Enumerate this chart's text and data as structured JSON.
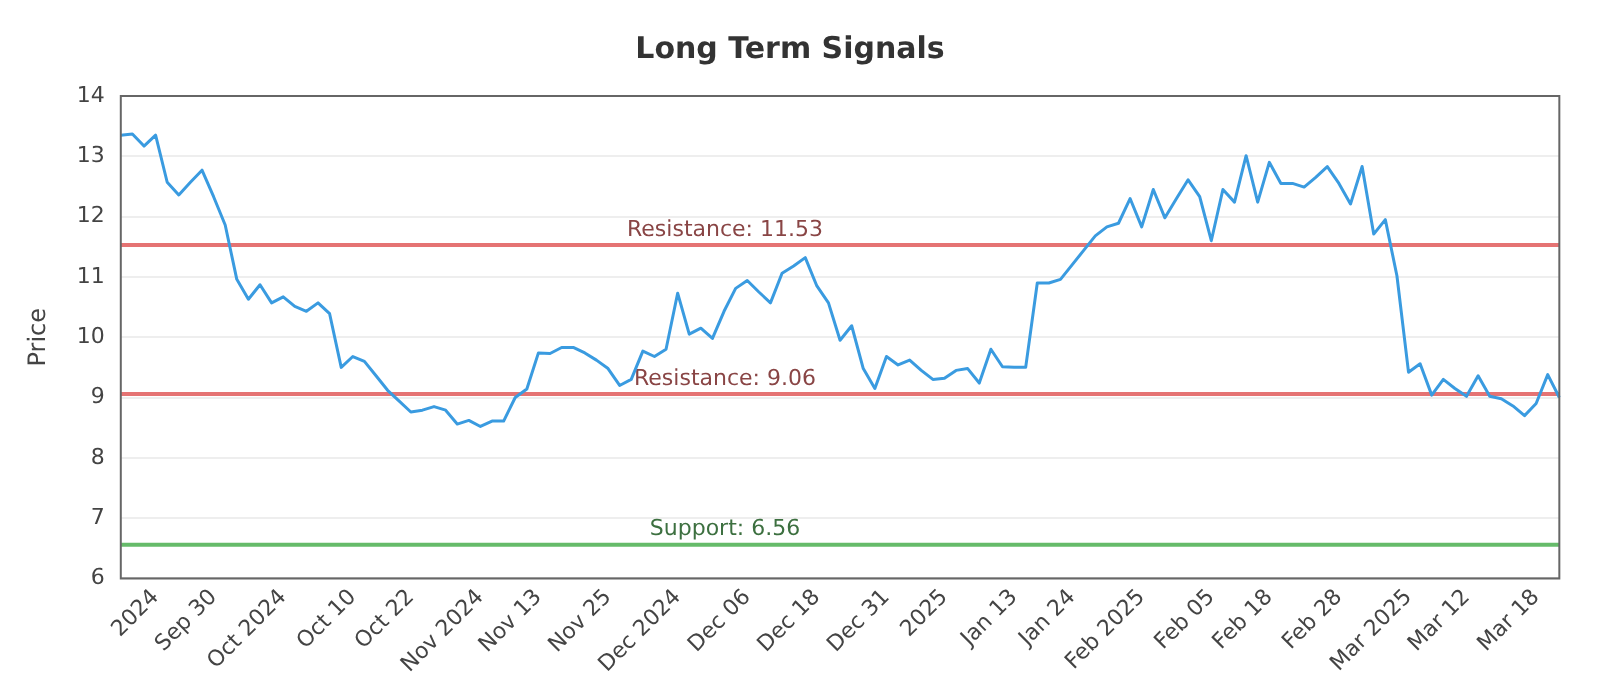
{
  "chart_data": {
    "type": "line",
    "title": "Long Term Signals",
    "ylabel": "Price",
    "categories": [
      null,
      null,
      null,
      "2024",
      null,
      null,
      null,
      null,
      "Sep 30",
      null,
      null,
      null,
      null,
      null,
      "Oct 2024",
      null,
      null,
      null,
      null,
      null,
      "Oct 10",
      null,
      null,
      null,
      null,
      "Oct 22",
      null,
      null,
      null,
      null,
      null,
      "Nov 2024",
      null,
      null,
      null,
      null,
      "Nov 13",
      null,
      null,
      null,
      null,
      null,
      "Nov 25",
      null,
      null,
      null,
      null,
      null,
      "Dec 2024",
      null,
      null,
      null,
      null,
      null,
      "Dec 06",
      null,
      null,
      null,
      null,
      null,
      "Dec 18",
      null,
      null,
      null,
      null,
      null,
      "Dec 31",
      null,
      null,
      null,
      null,
      "2025",
      null,
      null,
      null,
      null,
      null,
      "Jan 13",
      null,
      null,
      null,
      null,
      "Jan 24",
      null,
      null,
      null,
      null,
      null,
      "Feb 2025",
      null,
      null,
      null,
      null,
      null,
      "Feb 05",
      null,
      null,
      null,
      null,
      "Feb 18",
      null,
      null,
      null,
      null,
      null,
      "Feb 28",
      null,
      null,
      null,
      null,
      null,
      "Mar 2025",
      null,
      null,
      null,
      null,
      "Mar 12",
      null,
      null,
      null,
      null,
      null,
      "Mar 18",
      null,
      null
    ],
    "series": [
      {
        "color": "#3a9be0",
        "values": [
          13.35,
          13.37,
          13.17,
          13.35,
          12.57,
          12.36,
          12.57,
          12.77,
          12.33,
          11.86,
          10.96,
          10.63,
          10.87,
          10.57,
          10.67,
          10.51,
          10.43,
          10.57,
          10.39,
          9.5,
          9.68,
          9.6,
          9.36,
          9.12,
          8.94,
          8.76,
          8.79,
          8.85,
          8.79,
          8.56,
          8.62,
          8.52,
          8.61,
          8.61,
          9.0,
          9.14,
          9.74,
          9.73,
          9.83,
          9.83,
          9.74,
          9.62,
          9.48,
          9.2,
          9.3,
          9.77,
          9.68,
          9.8,
          10.73,
          10.05,
          10.15,
          9.98,
          10.43,
          10.81,
          10.94,
          10.75,
          10.57,
          11.06,
          11.18,
          11.32,
          10.85,
          10.57,
          9.95,
          10.19,
          9.48,
          9.15,
          9.68,
          9.54,
          9.62,
          9.45,
          9.3,
          9.32,
          9.45,
          9.48,
          9.24,
          9.8,
          9.51,
          9.5,
          9.5,
          10.9,
          10.9,
          10.96,
          11.2,
          11.44,
          11.68,
          11.83,
          11.89,
          12.3,
          11.83,
          12.45,
          11.98,
          12.3,
          12.61,
          12.33,
          11.6,
          12.45,
          12.24,
          13.01,
          12.24,
          12.9,
          12.55,
          12.55,
          12.49,
          12.65,
          12.83,
          12.55,
          12.21,
          12.83,
          11.71,
          11.95,
          11.02,
          9.42,
          9.56,
          9.04,
          9.3,
          9.15,
          9.02,
          9.36,
          9.02,
          8.98,
          8.86,
          8.7,
          8.9,
          9.38,
          9.0
        ]
      }
    ],
    "ylim": [
      6,
      14
    ],
    "yticks": [
      6,
      7,
      8,
      9,
      10,
      11,
      12,
      13,
      14
    ],
    "grid": "y",
    "legend": false,
    "marker": "none",
    "line_style": "solid",
    "ref_lines": [
      {
        "axis": "y",
        "value": 11.53,
        "label": "Resistance: 11.53",
        "color": "#e57373"
      },
      {
        "axis": "y",
        "value": 9.06,
        "label": "Resistance: 9.06",
        "color": "#e57373"
      },
      {
        "axis": "y",
        "value": 6.56,
        "label": "Support: 6.56",
        "color": "#66bb6a"
      }
    ]
  }
}
